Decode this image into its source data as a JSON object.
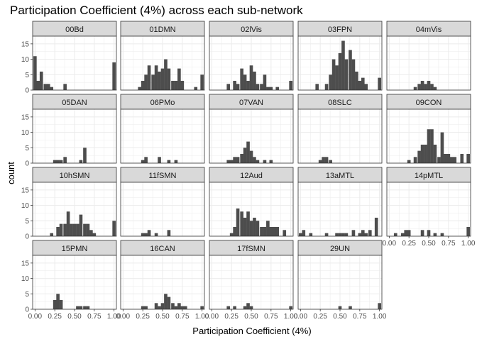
{
  "chart_data": {
    "type": "bar",
    "title": "Participation Coefficient (4%) across each sub-network",
    "xlabel": "Participation Coefficient (4%)",
    "ylabel": "count",
    "xlim": [
      -0.03,
      1.03
    ],
    "ylim": [
      0,
      17.5
    ],
    "x_ticks": [
      0.0,
      0.25,
      0.5,
      0.75,
      1.0
    ],
    "x_tick_labels": [
      "0.00",
      "0.25",
      "0.50",
      "0.75",
      "1.00"
    ],
    "y_ticks": [
      0,
      5,
      10,
      15
    ],
    "y_tick_labels": [
      "0",
      "5",
      "10",
      "15"
    ],
    "bin_width": 0.0417,
    "grid": true,
    "bar_color": "#4d4d4d",
    "panel_background": "#ffffff",
    "strip_background": "#d9d9d9",
    "grid_color": "#ebebeb",
    "facet_layout": {
      "ncol": 5,
      "nrow": 4
    },
    "facets": [
      {
        "name": "00Bd",
        "bins": [
          {
            "x": 0.0,
            "count": 11
          },
          {
            "x": 0.04,
            "count": 3
          },
          {
            "x": 0.08,
            "count": 6
          },
          {
            "x": 0.13,
            "count": 2
          },
          {
            "x": 0.17,
            "count": 2
          },
          {
            "x": 0.21,
            "count": 1
          },
          {
            "x": 0.38,
            "count": 2
          },
          {
            "x": 1.0,
            "count": 9
          }
        ]
      },
      {
        "name": "01DMN",
        "bins": [
          {
            "x": 0.21,
            "count": 1
          },
          {
            "x": 0.25,
            "count": 3
          },
          {
            "x": 0.29,
            "count": 5
          },
          {
            "x": 0.33,
            "count": 8
          },
          {
            "x": 0.38,
            "count": 5
          },
          {
            "x": 0.42,
            "count": 8
          },
          {
            "x": 0.46,
            "count": 6
          },
          {
            "x": 0.5,
            "count": 7
          },
          {
            "x": 0.54,
            "count": 10
          },
          {
            "x": 0.58,
            "count": 7
          },
          {
            "x": 0.63,
            "count": 3
          },
          {
            "x": 0.67,
            "count": 3
          },
          {
            "x": 0.71,
            "count": 7
          },
          {
            "x": 0.75,
            "count": 3
          },
          {
            "x": 0.92,
            "count": 1
          },
          {
            "x": 1.0,
            "count": 5
          }
        ]
      },
      {
        "name": "02lVis",
        "bins": [
          {
            "x": 0.21,
            "count": 2
          },
          {
            "x": 0.29,
            "count": 3
          },
          {
            "x": 0.33,
            "count": 2
          },
          {
            "x": 0.38,
            "count": 7
          },
          {
            "x": 0.42,
            "count": 5
          },
          {
            "x": 0.46,
            "count": 3
          },
          {
            "x": 0.5,
            "count": 8
          },
          {
            "x": 0.54,
            "count": 6
          },
          {
            "x": 0.58,
            "count": 2
          },
          {
            "x": 0.63,
            "count": 2
          },
          {
            "x": 0.67,
            "count": 5
          },
          {
            "x": 0.71,
            "count": 1
          },
          {
            "x": 0.75,
            "count": 1
          },
          {
            "x": 0.83,
            "count": 1
          },
          {
            "x": 1.0,
            "count": 3
          }
        ]
      },
      {
        "name": "03FPN",
        "bins": [
          {
            "x": 0.21,
            "count": 2
          },
          {
            "x": 0.33,
            "count": 2
          },
          {
            "x": 0.38,
            "count": 5
          },
          {
            "x": 0.42,
            "count": 10
          },
          {
            "x": 0.46,
            "count": 8
          },
          {
            "x": 0.5,
            "count": 12
          },
          {
            "x": 0.54,
            "count": 16
          },
          {
            "x": 0.58,
            "count": 10
          },
          {
            "x": 0.63,
            "count": 13
          },
          {
            "x": 0.67,
            "count": 10
          },
          {
            "x": 0.71,
            "count": 6
          },
          {
            "x": 0.75,
            "count": 3
          },
          {
            "x": 0.79,
            "count": 4
          },
          {
            "x": 0.83,
            "count": 2
          },
          {
            "x": 1.0,
            "count": 4
          }
        ]
      },
      {
        "name": "04mVis",
        "bins": [
          {
            "x": 0.33,
            "count": 1
          },
          {
            "x": 0.38,
            "count": 2
          },
          {
            "x": 0.42,
            "count": 3
          },
          {
            "x": 0.46,
            "count": 2
          },
          {
            "x": 0.5,
            "count": 3
          },
          {
            "x": 0.54,
            "count": 2
          },
          {
            "x": 0.58,
            "count": 1
          }
        ]
      },
      {
        "name": "05DAN",
        "bins": [
          {
            "x": 0.25,
            "count": 1
          },
          {
            "x": 0.29,
            "count": 1
          },
          {
            "x": 0.33,
            "count": 1
          },
          {
            "x": 0.38,
            "count": 2
          },
          {
            "x": 0.58,
            "count": 1
          },
          {
            "x": 0.63,
            "count": 5
          }
        ]
      },
      {
        "name": "06PMo",
        "bins": [
          {
            "x": 0.25,
            "count": 1
          },
          {
            "x": 0.29,
            "count": 2
          },
          {
            "x": 0.46,
            "count": 2
          },
          {
            "x": 0.58,
            "count": 1
          },
          {
            "x": 0.67,
            "count": 1
          }
        ]
      },
      {
        "name": "07VAN",
        "bins": [
          {
            "x": 0.21,
            "count": 1
          },
          {
            "x": 0.25,
            "count": 1
          },
          {
            "x": 0.29,
            "count": 2
          },
          {
            "x": 0.33,
            "count": 2
          },
          {
            "x": 0.38,
            "count": 3
          },
          {
            "x": 0.42,
            "count": 5
          },
          {
            "x": 0.46,
            "count": 7
          },
          {
            "x": 0.5,
            "count": 4
          },
          {
            "x": 0.54,
            "count": 2
          },
          {
            "x": 0.58,
            "count": 1
          },
          {
            "x": 0.67,
            "count": 1
          },
          {
            "x": 0.75,
            "count": 1
          }
        ]
      },
      {
        "name": "08SLC",
        "bins": [
          {
            "x": 0.25,
            "count": 1
          },
          {
            "x": 0.29,
            "count": 2
          },
          {
            "x": 0.33,
            "count": 2
          },
          {
            "x": 0.38,
            "count": 1
          }
        ]
      },
      {
        "name": "09CON",
        "bins": [
          {
            "x": 0.25,
            "count": 1
          },
          {
            "x": 0.33,
            "count": 2
          },
          {
            "x": 0.38,
            "count": 4
          },
          {
            "x": 0.42,
            "count": 6
          },
          {
            "x": 0.46,
            "count": 6
          },
          {
            "x": 0.5,
            "count": 11
          },
          {
            "x": 0.54,
            "count": 11
          },
          {
            "x": 0.58,
            "count": 6
          },
          {
            "x": 0.63,
            "count": 2
          },
          {
            "x": 0.67,
            "count": 10
          },
          {
            "x": 0.71,
            "count": 3
          },
          {
            "x": 0.75,
            "count": 3
          },
          {
            "x": 0.79,
            "count": 2
          },
          {
            "x": 0.83,
            "count": 2
          },
          {
            "x": 0.92,
            "count": 3
          },
          {
            "x": 1.0,
            "count": 3
          }
        ]
      },
      {
        "name": "10hSMN",
        "bins": [
          {
            "x": 0.21,
            "count": 1
          },
          {
            "x": 0.29,
            "count": 3
          },
          {
            "x": 0.33,
            "count": 4
          },
          {
            "x": 0.38,
            "count": 4
          },
          {
            "x": 0.42,
            "count": 8
          },
          {
            "x": 0.46,
            "count": 4
          },
          {
            "x": 0.5,
            "count": 4
          },
          {
            "x": 0.54,
            "count": 4
          },
          {
            "x": 0.58,
            "count": 7
          },
          {
            "x": 0.63,
            "count": 4
          },
          {
            "x": 0.67,
            "count": 4
          },
          {
            "x": 0.71,
            "count": 2
          },
          {
            "x": 0.75,
            "count": 1
          },
          {
            "x": 1.0,
            "count": 5
          }
        ]
      },
      {
        "name": "11fSMN",
        "bins": [
          {
            "x": 0.25,
            "count": 1
          },
          {
            "x": 0.29,
            "count": 1
          },
          {
            "x": 0.33,
            "count": 2
          },
          {
            "x": 0.42,
            "count": 1
          },
          {
            "x": 0.58,
            "count": 2
          }
        ]
      },
      {
        "name": "12Aud",
        "bins": [
          {
            "x": 0.25,
            "count": 1
          },
          {
            "x": 0.29,
            "count": 3
          },
          {
            "x": 0.33,
            "count": 9
          },
          {
            "x": 0.38,
            "count": 8
          },
          {
            "x": 0.42,
            "count": 6
          },
          {
            "x": 0.46,
            "count": 8
          },
          {
            "x": 0.5,
            "count": 5
          },
          {
            "x": 0.54,
            "count": 6
          },
          {
            "x": 0.58,
            "count": 5
          },
          {
            "x": 0.63,
            "count": 3
          },
          {
            "x": 0.67,
            "count": 3
          },
          {
            "x": 0.71,
            "count": 5
          },
          {
            "x": 0.75,
            "count": 3
          },
          {
            "x": 0.79,
            "count": 3
          },
          {
            "x": 0.83,
            "count": 3
          },
          {
            "x": 0.92,
            "count": 2
          }
        ]
      },
      {
        "name": "13aMTL",
        "bins": [
          {
            "x": 0.0,
            "count": 1
          },
          {
            "x": 0.04,
            "count": 2
          },
          {
            "x": 0.13,
            "count": 1
          },
          {
            "x": 0.33,
            "count": 1
          },
          {
            "x": 0.46,
            "count": 1
          },
          {
            "x": 0.5,
            "count": 1
          },
          {
            "x": 0.54,
            "count": 1
          },
          {
            "x": 0.58,
            "count": 1
          },
          {
            "x": 0.67,
            "count": 2
          },
          {
            "x": 0.75,
            "count": 1
          },
          {
            "x": 0.79,
            "count": 2
          },
          {
            "x": 0.83,
            "count": 1
          },
          {
            "x": 0.88,
            "count": 2
          },
          {
            "x": 0.96,
            "count": 6
          }
        ]
      },
      {
        "name": "14pMTL",
        "bins": [
          {
            "x": 0.08,
            "count": 1
          },
          {
            "x": 0.17,
            "count": 1
          },
          {
            "x": 0.21,
            "count": 2
          },
          {
            "x": 0.25,
            "count": 2
          },
          {
            "x": 0.42,
            "count": 2
          },
          {
            "x": 0.5,
            "count": 2
          },
          {
            "x": 0.58,
            "count": 1
          },
          {
            "x": 0.67,
            "count": 1
          },
          {
            "x": 1.0,
            "count": 3
          }
        ]
      },
      {
        "name": "15PMN",
        "bins": [
          {
            "x": 0.25,
            "count": 3
          },
          {
            "x": 0.29,
            "count": 5
          },
          {
            "x": 0.33,
            "count": 3
          },
          {
            "x": 0.54,
            "count": 1
          },
          {
            "x": 0.58,
            "count": 1
          },
          {
            "x": 0.63,
            "count": 1
          },
          {
            "x": 0.67,
            "count": 1
          }
        ]
      },
      {
        "name": "16CAN",
        "bins": [
          {
            "x": 0.25,
            "count": 1
          },
          {
            "x": 0.29,
            "count": 1
          },
          {
            "x": 0.42,
            "count": 2
          },
          {
            "x": 0.46,
            "count": 1
          },
          {
            "x": 0.5,
            "count": 2
          },
          {
            "x": 0.54,
            "count": 5
          },
          {
            "x": 0.58,
            "count": 4
          },
          {
            "x": 0.63,
            "count": 2
          },
          {
            "x": 0.67,
            "count": 1
          },
          {
            "x": 0.71,
            "count": 2
          },
          {
            "x": 0.75,
            "count": 1
          },
          {
            "x": 0.79,
            "count": 1
          },
          {
            "x": 1.0,
            "count": 1
          }
        ]
      },
      {
        "name": "17fSMN",
        "bins": [
          {
            "x": 0.21,
            "count": 1
          },
          {
            "x": 0.29,
            "count": 1
          },
          {
            "x": 0.42,
            "count": 1
          },
          {
            "x": 0.46,
            "count": 2
          },
          {
            "x": 0.5,
            "count": 1
          },
          {
            "x": 1.0,
            "count": 1
          }
        ]
      },
      {
        "name": "29UN",
        "bins": [
          {
            "x": 0.5,
            "count": 1
          },
          {
            "x": 0.63,
            "count": 1
          },
          {
            "x": 1.0,
            "count": 2
          }
        ]
      }
    ]
  }
}
